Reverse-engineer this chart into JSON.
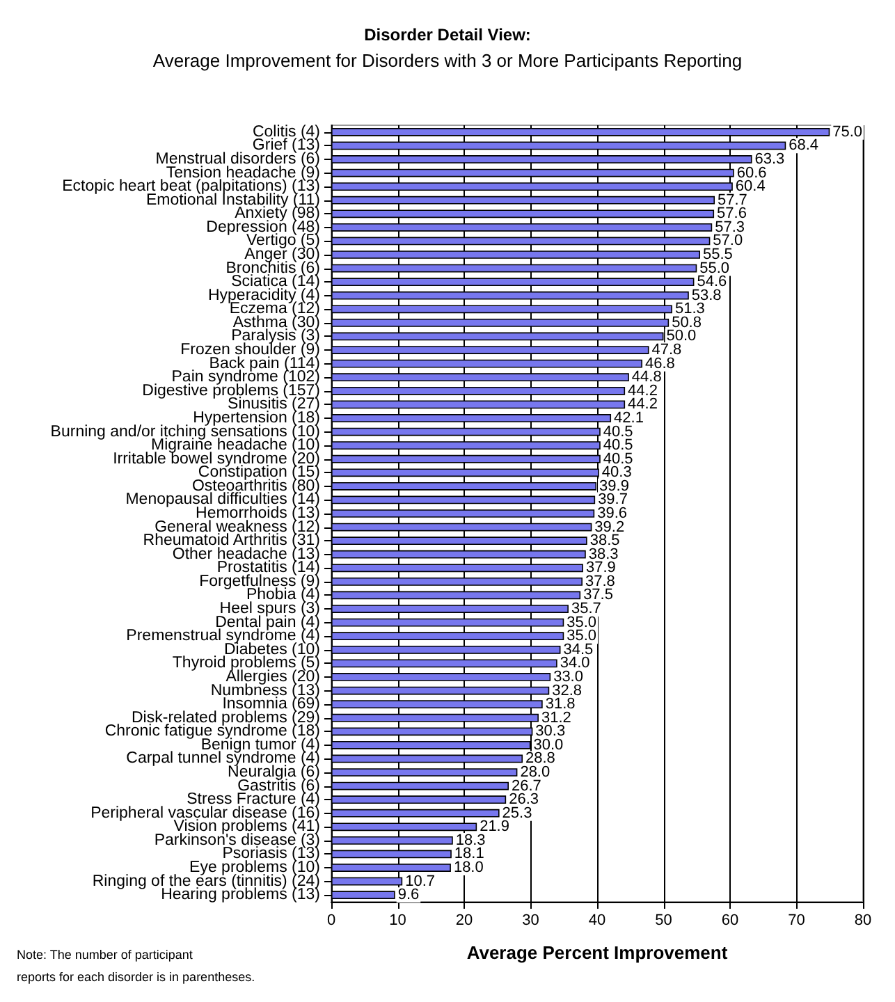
{
  "chart_data": {
    "type": "bar",
    "orientation": "horizontal",
    "title": "Disorder Detail View:",
    "subtitle": "Average Improvement for Disorders with 3 or More Participants Reporting",
    "xlabel": "Average Percent Improvement",
    "annotations": [
      "Note: The number of participant\nreports for each disorder is in parentheses."
    ],
    "categories": [
      "Colitis (4)",
      "Grief (13)",
      "Menstrual disorders (6)",
      "Tension headache (9)",
      "Ectopic heart beat (palpitations) (13)",
      "Emotional Instability (11)",
      "Anxiety (98)",
      "Depression (48)",
      "Vertigo (5)",
      "Anger (30)",
      "Bronchitis (6)",
      "Sciatica (14)",
      "Hyperacidity (4)",
      "Eczema (12)",
      "Asthma (30)",
      "Paralysis (3)",
      "Frozen shoulder (9)",
      "Back pain (114)",
      "Pain syndrome (102)",
      "Digestive problems (157)",
      "Sinusitis (27)",
      "Hypertension (18)",
      "Burning and/or itching sensations (10)",
      "Migraine headache (10)",
      "Irritable bowel syndrome (20)",
      "Constipation (15)",
      "Osteoarthritis (80)",
      "Menopausal difficulties (14)",
      "Hemorrhoids (13)",
      "General weakness (12)",
      "Rheumatoid Arthritis (31)",
      "Other headache (13)",
      "Prostatitis (14)",
      "Forgetfulness (9)",
      "Phobia (4)",
      "Heel spurs (3)",
      "Dental pain (4)",
      "Premenstrual syndrome (4)",
      "Diabetes (10)",
      "Thyroid problems (5)",
      "Allergies (20)",
      "Numbness (13)",
      "Insomnia (69)",
      "Disk-related problems (29)",
      "Chronic fatigue syndrome (18)",
      "Benign tumor (4)",
      "Carpal tunnel syndrome (4)",
      "Neuralgia (6)",
      "Gastritis (6)",
      "Stress Fracture (4)",
      "Peripheral vascular disease (16)",
      "Vision problems (41)",
      "Parkinson's disease (3)",
      "Psoriasis (13)",
      "Eye problems (10)",
      "Ringing of the ears (tinnitis) (24)",
      "Hearing problems (13)"
    ],
    "values": [
      75.0,
      68.4,
      63.3,
      60.6,
      60.4,
      57.7,
      57.6,
      57.3,
      57.0,
      55.5,
      55.0,
      54.6,
      53.8,
      51.3,
      50.8,
      50.0,
      47.8,
      46.8,
      44.8,
      44.2,
      44.2,
      42.1,
      40.5,
      40.5,
      40.5,
      40.3,
      39.9,
      39.7,
      39.6,
      39.2,
      38.5,
      38.3,
      37.9,
      37.8,
      37.5,
      35.7,
      35.0,
      35.0,
      34.5,
      34.0,
      33.0,
      32.8,
      31.8,
      31.2,
      30.3,
      30.0,
      28.8,
      28.0,
      26.7,
      26.3,
      25.3,
      21.9,
      18.3,
      18.1,
      18.0,
      10.7,
      9.6
    ],
    "value_labels": [
      "75.0",
      "68.4",
      "63.3",
      "60.6",
      "60.4",
      "57.7",
      "57.6",
      "57.3",
      "57.0",
      "55.5",
      "55.0",
      "54.6",
      "53.8",
      "51.3",
      "50.8",
      "50.0",
      "47.8",
      "46.8",
      "44.8",
      "44.2",
      "44.2",
      "42.1",
      "40.5",
      "40.5",
      "40.5",
      "40.3",
      "39.9",
      "39.7",
      "39.6",
      "39.2",
      "38.5",
      "38.3",
      "37.9",
      "37.8",
      "37.5",
      "35.7",
      "35.0",
      "35.0",
      "34.5",
      "34.0",
      "33.0",
      "32.8",
      "31.8",
      "31.2",
      "30.3",
      "30.0",
      "28.8",
      "28.0",
      "26.7",
      "26.3",
      "25.3",
      "21.9",
      "18.3",
      "18.1",
      "18.0",
      "10.7",
      "9.6"
    ],
    "color": "#7777ee",
    "xlim": [
      0,
      80
    ],
    "xticks": [
      0,
      10,
      20,
      30,
      40,
      50,
      60,
      70,
      80
    ],
    "grid": "x"
  }
}
